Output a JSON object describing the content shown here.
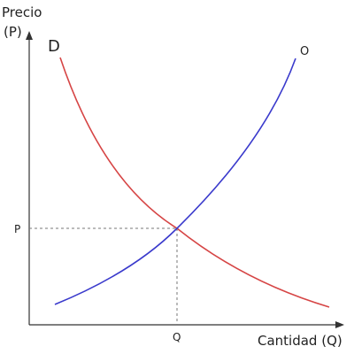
{
  "axes": {
    "y_label_line1": "Precio",
    "y_label_line2": "(P)",
    "x_label": "Cantidad (Q)"
  },
  "curves": {
    "demand": {
      "label": "D",
      "color": "#d64545"
    },
    "supply": {
      "label": "O",
      "color": "#3a3acc"
    }
  },
  "equilibrium": {
    "price_label": "P",
    "quantity_label": "Q",
    "guide_color": "#777777"
  },
  "axis_color": "#333333"
}
